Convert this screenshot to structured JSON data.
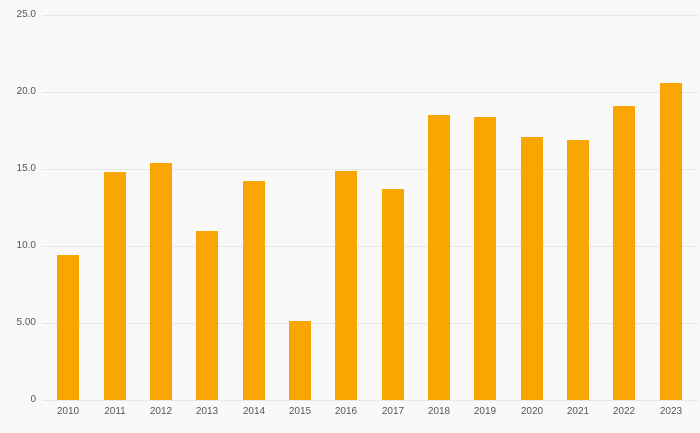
{
  "chart_data": {
    "type": "bar",
    "title": "",
    "xlabel": "",
    "ylabel": "",
    "categories": [
      "2010",
      "2011",
      "2012",
      "2013",
      "2014",
      "2015",
      "2016",
      "2017",
      "2018",
      "2019",
      "2020",
      "2021",
      "2022",
      "2023"
    ],
    "values": [
      9.4,
      14.8,
      15.4,
      11.0,
      14.2,
      5.1,
      14.9,
      13.7,
      18.5,
      18.4,
      17.1,
      16.9,
      19.1,
      20.6
    ],
    "ylim": [
      0,
      25
    ],
    "yticks": [
      {
        "value": 0,
        "label": "0"
      },
      {
        "value": 5,
        "label": "5.00"
      },
      {
        "value": 10,
        "label": "10.0"
      },
      {
        "value": 15,
        "label": "15.0"
      },
      {
        "value": 20,
        "label": "20.0"
      },
      {
        "value": 25,
        "label": "25.0"
      }
    ],
    "grid": true,
    "legend_position": "none",
    "bar_color": "#F9A602"
  },
  "colors": {
    "background": "#f9f9f9",
    "gridline": "#e6e6e6",
    "tick_text": "#555555",
    "bar": "#F9A602"
  }
}
